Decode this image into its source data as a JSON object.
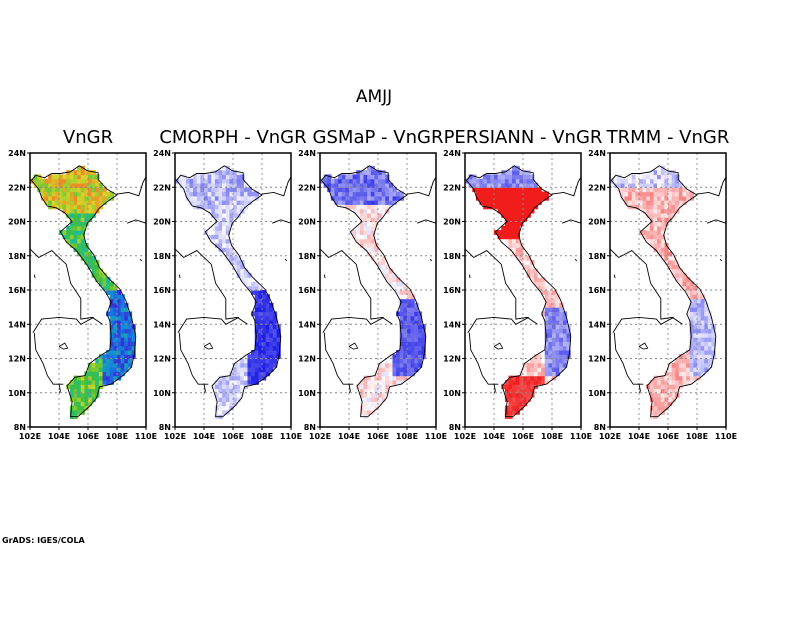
{
  "figure": {
    "season_title": "AMJJ",
    "credit": "GrADS: IGES/COLA"
  },
  "panels": [
    {
      "title": "VnGR",
      "colormap": "rainbow"
    },
    {
      "title": "CMORPH - VnGR",
      "colormap": "diverging"
    },
    {
      "title": "GSMaP - VnGR",
      "colormap": "diverging"
    },
    {
      "title": "PERSIANN - VnGR",
      "colormap": "diverging"
    },
    {
      "title": "TRMM - VnGR",
      "colormap": "diverging"
    }
  ],
  "axes": {
    "lon_labels": [
      "102E",
      "104E",
      "106E",
      "108E",
      "110E"
    ],
    "lat_labels": [
      "8N",
      "10N",
      "12N",
      "14N",
      "16N",
      "18N",
      "20N",
      "22N",
      "24N"
    ],
    "lon_range": [
      102,
      110
    ],
    "lat_range": [
      8,
      24
    ]
  },
  "colors": {
    "strong_negative": "#1414e6",
    "neutral": "#ffffff",
    "strong_positive": "#f01010"
  }
}
